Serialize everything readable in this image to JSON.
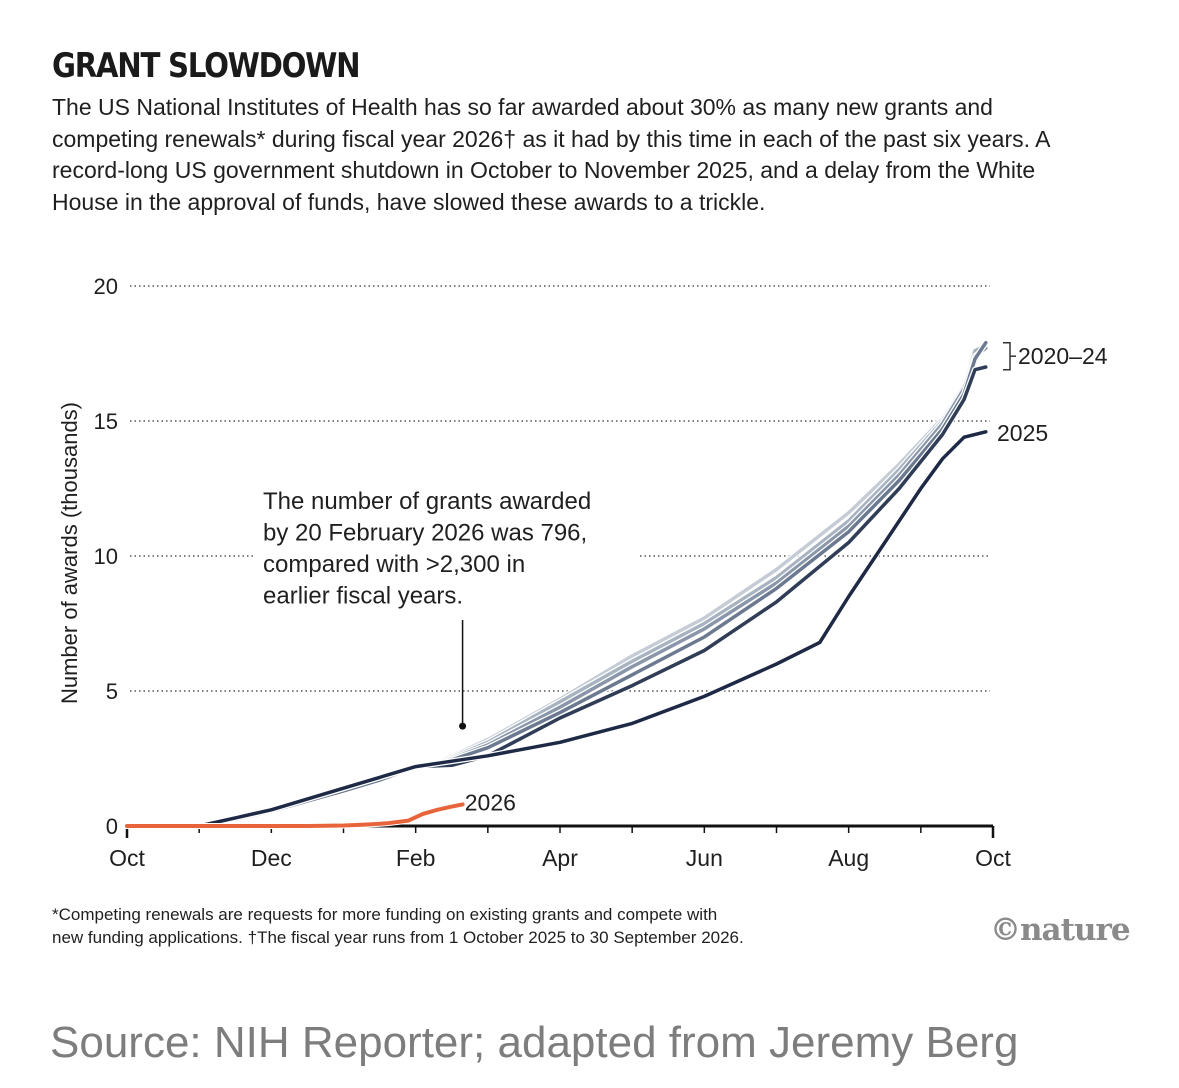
{
  "header": {
    "title": "GRANT SLOWDOWN",
    "subtitle": "The US National Institutes of Health has so far awarded about 30% as many new grants and competing renewals* during fiscal year 2026† as it had by this time in each of the past six years. A record-long US government shutdown in October to November 2025, and a delay from the White House in the approval of funds, have slowed these awards to a trickle."
  },
  "chart_data": {
    "type": "line",
    "title": "GRANT SLOWDOWN",
    "xlabel": "",
    "ylabel": "Number of awards (thousands)",
    "x_range_months": [
      0,
      12
    ],
    "ylim": [
      0,
      20
    ],
    "y_ticks": [
      0,
      5,
      10,
      15,
      20
    ],
    "x_tick_labels": [
      {
        "label": "Oct",
        "month": 0
      },
      {
        "label": "Dec",
        "month": 2
      },
      {
        "label": "Feb",
        "month": 4
      },
      {
        "label": "Apr",
        "month": 6
      },
      {
        "label": "Jun",
        "month": 8
      },
      {
        "label": "Aug",
        "month": 10
      },
      {
        "label": "Oct",
        "month": 12
      }
    ],
    "grid": "horizontal-dotted",
    "series": [
      {
        "name": "2020",
        "group": "2020–24",
        "color": "#c5ccd6",
        "x": [
          0,
          1,
          1.5,
          2,
          3,
          3.5,
          4,
          4.5,
          5,
          6,
          7,
          8,
          9,
          10,
          10.7,
          11.3,
          11.6,
          11.75,
          11.9
        ],
        "y": [
          0,
          0,
          0.3,
          0.6,
          1.4,
          1.8,
          2.2,
          2.6,
          3.2,
          4.7,
          6.3,
          7.7,
          9.5,
          11.6,
          13.4,
          15.1,
          16.3,
          17.5,
          17.7
        ]
      },
      {
        "name": "2021",
        "group": "2020–24",
        "color": "#a8b3c2",
        "x": [
          0,
          1,
          1.5,
          2,
          3,
          3.5,
          4,
          4.5,
          5,
          6,
          7,
          8,
          9,
          10,
          10.7,
          11.3,
          11.6,
          11.75,
          11.9
        ],
        "y": [
          0,
          0,
          0.25,
          0.55,
          1.3,
          1.7,
          2.2,
          2.55,
          3.1,
          4.6,
          6.1,
          7.5,
          9.2,
          11.3,
          13.2,
          15.0,
          16.3,
          17.6,
          17.8
        ]
      },
      {
        "name": "2022",
        "group": "2020–24",
        "color": "#8a97aa",
        "x": [
          0,
          1,
          1.5,
          2,
          3,
          3.5,
          4,
          4.5,
          5,
          6,
          7,
          8,
          9,
          10,
          10.7,
          11.3,
          11.6,
          11.75,
          11.9
        ],
        "y": [
          0,
          0,
          0.3,
          0.6,
          1.4,
          1.8,
          2.2,
          2.5,
          3.0,
          4.4,
          5.9,
          7.3,
          9.0,
          11.1,
          13.0,
          14.9,
          16.2,
          17.4,
          17.7
        ]
      },
      {
        "name": "2023",
        "group": "2020–24",
        "color": "#6b7a90",
        "x": [
          0,
          1,
          1.5,
          2,
          3,
          3.5,
          4,
          4.5,
          5,
          6,
          7,
          8,
          9,
          10,
          10.7,
          11.3,
          11.6,
          11.75,
          11.9
        ],
        "y": [
          0,
          0,
          0.25,
          0.55,
          1.3,
          1.7,
          2.2,
          2.45,
          2.9,
          4.2,
          5.6,
          7.0,
          8.8,
          10.9,
          12.8,
          14.7,
          16.0,
          17.3,
          17.9
        ]
      },
      {
        "name": "2024",
        "group": "2020–24",
        "color": "#2f3d56",
        "x": [
          0,
          1,
          1.5,
          2,
          3,
          3.5,
          4,
          4.5,
          5,
          6,
          7,
          8,
          9,
          10,
          10.7,
          11.3,
          11.6,
          11.75,
          11.9
        ],
        "y": [
          0,
          0,
          0.3,
          0.6,
          1.4,
          1.8,
          2.2,
          2.25,
          2.6,
          4.0,
          5.2,
          6.5,
          8.3,
          10.5,
          12.5,
          14.5,
          15.8,
          16.9,
          17.0
        ]
      },
      {
        "name": "2025",
        "label": "2025",
        "color": "#1e2a45",
        "x": [
          0,
          1,
          1.5,
          2,
          3,
          3.5,
          4,
          4.5,
          5,
          6,
          7,
          8,
          9,
          9.6,
          10,
          10.5,
          11,
          11.3,
          11.6,
          11.9
        ],
        "y": [
          0,
          0,
          0.3,
          0.6,
          1.4,
          1.8,
          2.2,
          2.4,
          2.6,
          3.1,
          3.8,
          4.8,
          6.0,
          6.8,
          8.5,
          10.5,
          12.5,
          13.6,
          14.4,
          14.6
        ]
      },
      {
        "name": "2026",
        "label": "2026",
        "color": "#e8643a",
        "x": [
          0,
          1.5,
          2.5,
          3,
          3.3,
          3.6,
          3.9,
          4.1,
          4.3,
          4.5,
          4.65
        ],
        "y": [
          0,
          0,
          0,
          0.02,
          0.05,
          0.1,
          0.2,
          0.45,
          0.6,
          0.72,
          0.8
        ]
      }
    ],
    "labels": {
      "group_2020_24": "2020–24",
      "line_2025": "2025",
      "line_2026": "2026"
    },
    "annotation": {
      "text_lines": [
        "The number of grants awarded",
        "by 20 February 2026 was 796,",
        "compared with >2,300 in",
        "earlier fiscal years."
      ],
      "points_to_month": 4.65,
      "points_to_value": 3.7
    }
  },
  "footnote": {
    "line1": "*Competing renewals are requests for more funding on existing grants and compete with",
    "line2": "new funding applications. †The fiscal year runs from 1 October 2025 to 30 September 2026."
  },
  "logo_text": "©nature",
  "source_text": "Source: NIH Reporter; adapted from Jeremy Berg"
}
